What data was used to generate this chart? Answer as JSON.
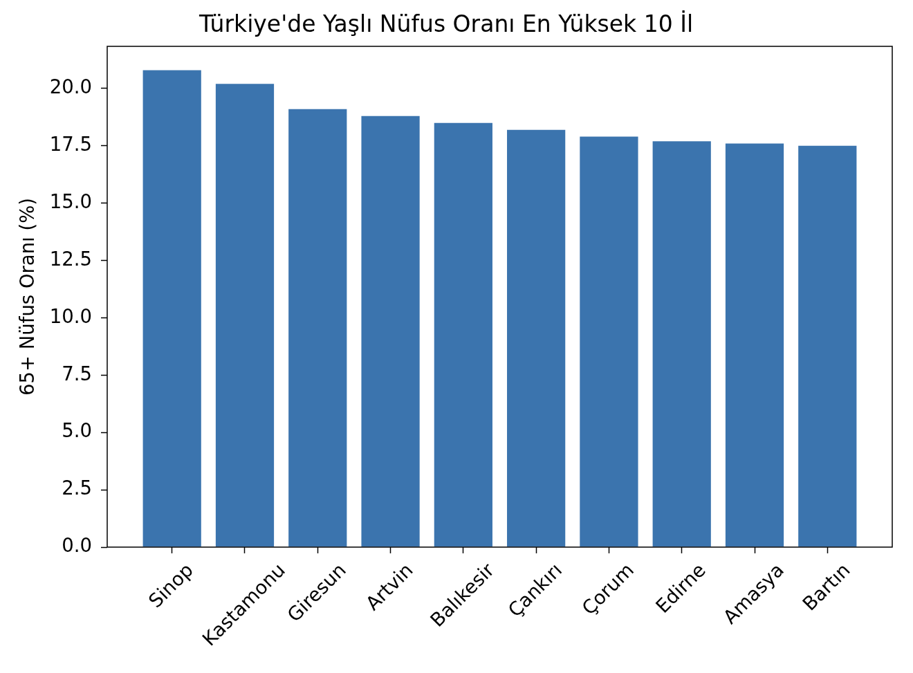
{
  "chart_data": {
    "type": "bar",
    "title": "Türkiye'de Yaşlı Nüfus Oranı En Yüksek 10 İl",
    "ylabel": "65+ Nüfus Oranı (%)",
    "categories": [
      "Sinop",
      "Kastamonu",
      "Giresun",
      "Artvin",
      "Balıkesir",
      "Çankırı",
      "Çorum",
      "Edirne",
      "Amasya",
      "Bartın"
    ],
    "values": [
      20.8,
      20.2,
      19.1,
      18.8,
      18.5,
      18.2,
      17.9,
      17.7,
      17.6,
      17.5
    ],
    "color": "#3b74ae",
    "ylim": [
      0,
      21.84
    ],
    "yticks": [
      {
        "value": 0,
        "label": "0.0"
      },
      2.5,
      {
        "value": 5,
        "label": "5.0"
      },
      7.5,
      {
        "value": 10,
        "label": "10.0"
      },
      12.5,
      {
        "value": 15,
        "label": "15.0"
      },
      17.5,
      {
        "value": 20,
        "label": "20.0"
      }
    ]
  }
}
